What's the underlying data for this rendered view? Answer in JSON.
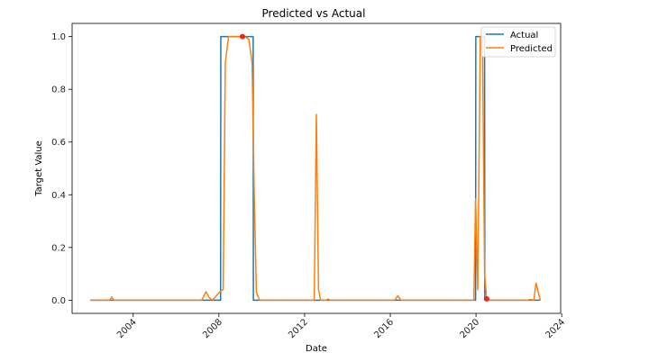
{
  "chart_data": {
    "type": "line",
    "title": "Predicted vs Actual",
    "xlabel": "Date",
    "ylabel": "Target Value",
    "xlim": [
      2001.15,
      2023.95
    ],
    "ylim": [
      -0.05,
      1.05
    ],
    "x_ticks": [
      2004,
      2008,
      2012,
      2016,
      2020,
      2024
    ],
    "y_ticks": [
      0.0,
      0.2,
      0.4,
      0.6,
      0.8,
      1.0
    ],
    "y_tick_labels": [
      "0.0",
      "0.2",
      "0.4",
      "0.6",
      "0.8",
      "1.0"
    ],
    "grid": false,
    "legend_position": "upper right",
    "series": [
      {
        "name": "Actual",
        "color": "#1f77b4",
        "x": [
          2002.0,
          2008.08,
          2008.09,
          2009.6,
          2009.61,
          2019.98,
          2019.99,
          2020.4,
          2020.41,
          2023.0
        ],
        "y": [
          0,
          0,
          1,
          1,
          0,
          0,
          1,
          1,
          0,
          0
        ]
      },
      {
        "name": "Predicted",
        "color": "#ff7f0e",
        "x": [
          2002.0,
          2002.9,
          2003.0,
          2003.1,
          2007.2,
          2007.4,
          2007.55,
          2007.7,
          2008.08,
          2008.2,
          2008.3,
          2008.45,
          2008.6,
          2008.75,
          2008.9,
          2009.05,
          2009.2,
          2009.4,
          2009.55,
          2009.65,
          2009.75,
          2009.9,
          2012.45,
          2012.55,
          2012.65,
          2012.75,
          2013.0,
          2013.1,
          2013.2,
          2016.2,
          2016.35,
          2016.5,
          2019.9,
          2019.98,
          2020.08,
          2020.2,
          2020.3,
          2020.4,
          2020.5,
          2022.4,
          2022.55,
          2022.7,
          2022.8,
          2023.0
        ],
        "y": [
          0,
          0,
          0.012,
          0,
          0,
          0.032,
          0.01,
          0,
          0.035,
          0.04,
          0.9,
          1.0,
          1.0,
          1.0,
          1.0,
          1.0,
          1.0,
          0.99,
          0.9,
          0.4,
          0.03,
          0,
          0,
          0.705,
          0.04,
          0,
          0,
          0.004,
          0,
          0,
          0.017,
          0,
          0,
          0.385,
          0.04,
          1.0,
          1.0,
          0.1,
          0,
          0,
          0.003,
          0,
          0.065,
          0
        ]
      }
    ],
    "markers": [
      {
        "x": 2009.1,
        "y": 1.0,
        "color": "#e8291c"
      },
      {
        "x": 2020.5,
        "y": 0.005,
        "color": "#e8291c"
      }
    ]
  }
}
